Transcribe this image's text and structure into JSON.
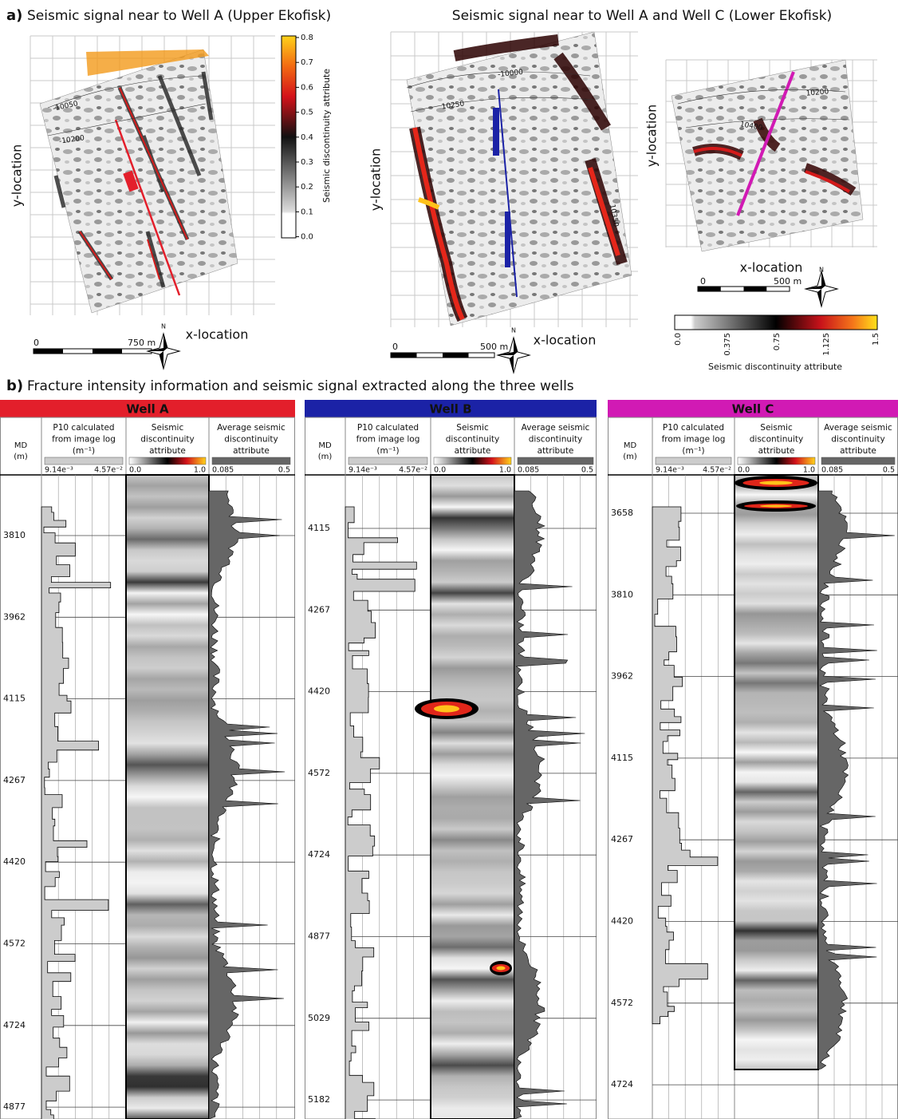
{
  "panel_a": {
    "label": "a)",
    "title_left": "Seismic signal near to Well A (Upper Ekofisk)",
    "title_right": "Seismic signal near to Well A and Well C (Lower Ekofisk)",
    "map_1": {
      "y_label": "y-location",
      "x_label": "x-location",
      "scale": [
        "0",
        "750 m"
      ],
      "north": "N",
      "contours": [
        "-10050",
        "-10200"
      ]
    },
    "colorbar_1": {
      "title": "Seismic discontinuity attribute",
      "ticks": [
        "0.8",
        "0.7",
        "0.6",
        "0.5",
        "0.4",
        "0.3",
        "0.2",
        "0.1",
        "0.0"
      ]
    },
    "map_2": {
      "y_label": "y-location",
      "x_label": "x-location",
      "scale": [
        "0",
        "500 m"
      ],
      "north": "N",
      "contours": [
        "-10000",
        "10250",
        "10350"
      ]
    },
    "map_3": {
      "y_label": "y-location",
      "x_label": "x-location",
      "scale": [
        "0",
        "500 m"
      ],
      "north": "N",
      "contours": [
        "10200",
        "10400"
      ]
    },
    "colorbar_2": {
      "title": "Seismic discontinuity attribute",
      "ticks": [
        "0.0",
        "0.375",
        "0.75",
        "1.125",
        "1.5"
      ]
    }
  },
  "panel_b": {
    "label": "b)",
    "title": "Fracture intensity information and seismic signal extracted along the three wells",
    "headers": {
      "md": [
        "MD",
        "(m)"
      ],
      "p10": [
        "P10 calculated",
        "from image log",
        "(m⁻¹)"
      ],
      "seismic": [
        "Seismic",
        "discontinuity",
        "attribute"
      ],
      "average": [
        "Average seismic",
        "discontinuity",
        "attribute"
      ]
    },
    "scales": {
      "p10": [
        "9.14e⁻³",
        "4.57e⁻²"
      ],
      "seismic": [
        "0.0",
        "1.0"
      ],
      "average": [
        "0.085",
        "0.5"
      ]
    },
    "wells": [
      {
        "name": "Well A",
        "color": "#e31f2b",
        "depths": [
          3810,
          3962,
          4115,
          4267,
          4420,
          4572,
          4724,
          4877
        ]
      },
      {
        "name": "Well B",
        "color": "#1b22a6",
        "depths": [
          4115,
          4267,
          4420,
          4572,
          4724,
          4877,
          5029,
          5182
        ]
      },
      {
        "name": "Well C",
        "color": "#d11ab4",
        "depths": [
          3658,
          3810,
          3962,
          4115,
          4267,
          4420,
          4572,
          4724
        ]
      }
    ]
  }
}
